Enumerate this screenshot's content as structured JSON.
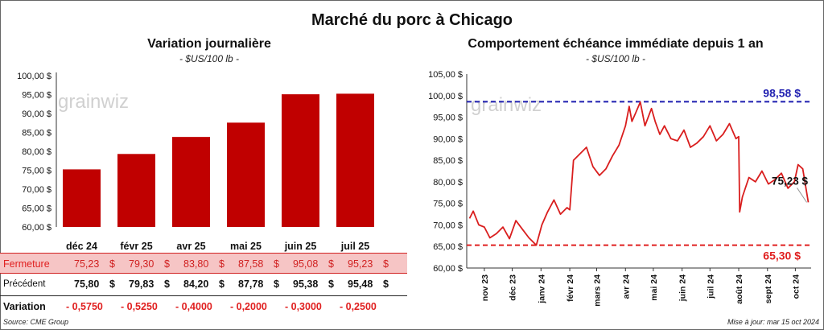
{
  "main_title": "Marché du porc à Chicago",
  "left": {
    "title": "Variation  journalière",
    "subtitle": "- $US/100 lb -",
    "watermark": "grainwiz"
  },
  "right": {
    "title": "Comportement  échéance immédiate depuis 1 an",
    "subtitle": "- $US/100 lb -",
    "watermark": "grainwiz",
    "max_label": "98,58 $",
    "min_label": "65,30 $",
    "last_label": "75,23 $"
  },
  "table": {
    "close_label": "Fermeture",
    "prev_label": "Précédent",
    "change_label": "Variation",
    "close_values": [
      "75,23",
      "79,30",
      "83,80",
      "87,58",
      "95,08",
      "95,23"
    ],
    "currency": "$",
    "prev_values": [
      "75,80",
      "79,83",
      "84,20",
      "87,78",
      "95,38",
      "95,48"
    ],
    "change_values": [
      "- 0,5750",
      "- 0,5250",
      "- 0,4000",
      "- 0,2000",
      "- 0,3000",
      "- 0,2500"
    ]
  },
  "footer": {
    "source": "Source: CME Group",
    "update": "Mise à jour: mar 15 oct 2024"
  },
  "colors": {
    "bar": "#c00000",
    "line": "#d91e1e",
    "max_line": "#1f1fb0",
    "min_line": "#e02020",
    "negative": "#e02020"
  },
  "chart_data": [
    {
      "type": "bar",
      "title": "Variation  journalière",
      "subtitle": "- $US/100 lb -",
      "categories": [
        "déc 24",
        "févr 25",
        "avr 25",
        "mai 25",
        "juin 25",
        "juil 25"
      ],
      "values": [
        75.23,
        79.3,
        83.8,
        87.58,
        95.08,
        95.23
      ],
      "ylim": [
        60,
        100
      ],
      "yticks": [
        "100,00 $",
        "95,00 $",
        "90,00 $",
        "85,00 $",
        "80,00 $",
        "75,00 $",
        "70,00 $",
        "65,00 $",
        "60,00 $"
      ],
      "grid": false
    },
    {
      "type": "line",
      "title": "Comportement  échéance immédiate depuis 1 an",
      "subtitle": "- $US/100 lb -",
      "ylim": [
        60,
        105
      ],
      "yticks": [
        "105,00 $",
        "100,00 $",
        "95,00 $",
        "90,00 $",
        "85,00 $",
        "80,00 $",
        "75,00 $",
        "70,00 $",
        "65,00 $",
        "60,00 $"
      ],
      "xlabels": [
        "nov 23",
        "déc 23",
        "janv 24",
        "févr 24",
        "mars 24",
        "avr 24",
        "mai 24",
        "juin 24",
        "juil 24",
        "août 24",
        "sept 24",
        "oct 24"
      ],
      "x": [
        "2023-10-16",
        "2023-10-20",
        "2023-10-26",
        "2023-11-01",
        "2023-11-07",
        "2023-11-14",
        "2023-11-21",
        "2023-11-28",
        "2023-12-05",
        "2023-12-12",
        "2023-12-19",
        "2023-12-27",
        "2024-01-02",
        "2024-01-08",
        "2024-01-15",
        "2024-01-22",
        "2024-01-29",
        "2024-02-01",
        "2024-02-05",
        "2024-02-12",
        "2024-02-19",
        "2024-02-26",
        "2024-03-04",
        "2024-03-11",
        "2024-03-18",
        "2024-03-25",
        "2024-04-01",
        "2024-04-05",
        "2024-04-08",
        "2024-04-12",
        "2024-04-17",
        "2024-04-22",
        "2024-04-29",
        "2024-05-03",
        "2024-05-08",
        "2024-05-13",
        "2024-05-20",
        "2024-05-27",
        "2024-06-03",
        "2024-06-10",
        "2024-06-17",
        "2024-06-24",
        "2024-07-01",
        "2024-07-08",
        "2024-07-15",
        "2024-07-22",
        "2024-07-29",
        "2024-08-01",
        "2024-08-02",
        "2024-08-05",
        "2024-08-12",
        "2024-08-19",
        "2024-08-26",
        "2024-09-02",
        "2024-09-09",
        "2024-09-16",
        "2024-09-23",
        "2024-09-30",
        "2024-10-04",
        "2024-10-09",
        "2024-10-15"
      ],
      "y": [
        71.5,
        73.2,
        70.0,
        69.5,
        67.0,
        68.0,
        69.5,
        66.8,
        71.0,
        69.0,
        67.0,
        65.3,
        70.0,
        73.0,
        75.8,
        72.5,
        74.0,
        73.5,
        85.0,
        86.5,
        88.0,
        83.5,
        81.5,
        83.0,
        86.0,
        88.5,
        93.0,
        97.5,
        94.0,
        96.0,
        98.5,
        93.0,
        97.0,
        94.0,
        91.0,
        93.0,
        90.0,
        89.5,
        92.0,
        88.0,
        89.0,
        90.5,
        93.0,
        89.5,
        91.0,
        93.5,
        90.0,
        90.5,
        73.0,
        76.5,
        81.0,
        80.0,
        82.5,
        79.5,
        80.5,
        82.0,
        78.5,
        80.0,
        84.0,
        83.0,
        75.23
      ],
      "annotations": {
        "max": 98.58,
        "min": 65.3,
        "last": 75.23
      },
      "grid": false
    }
  ]
}
